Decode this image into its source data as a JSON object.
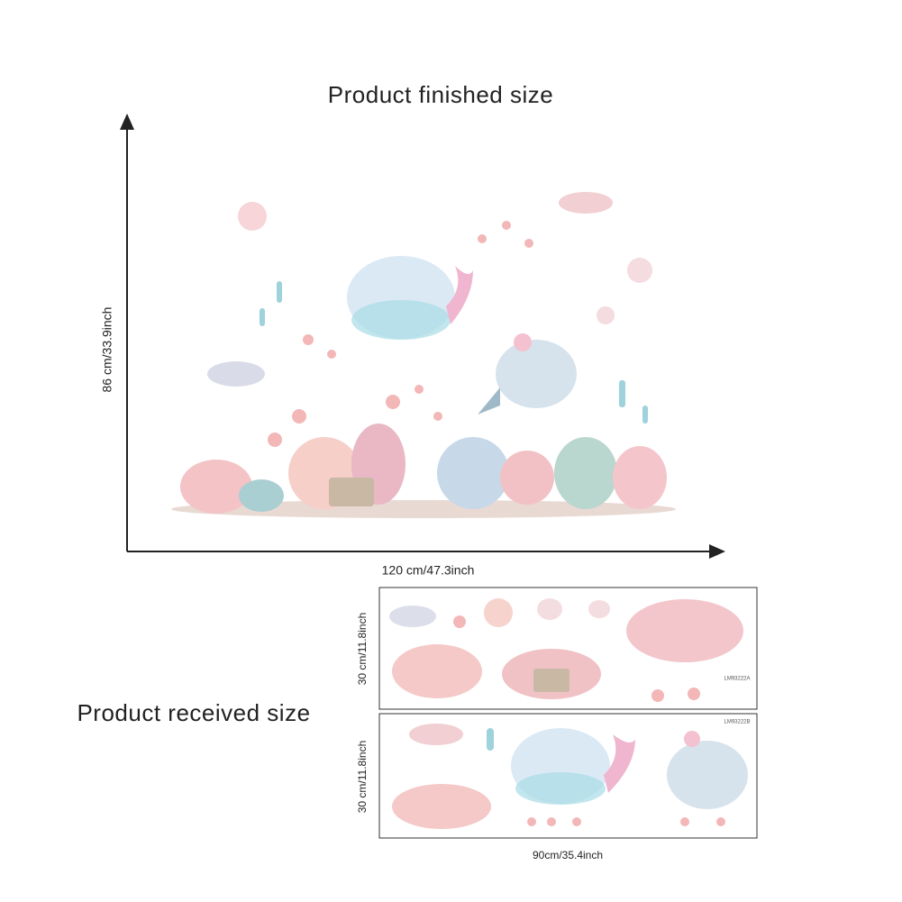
{
  "finished": {
    "title": "Product finished size",
    "height_label": "86 cm/33.9inch",
    "width_label": "120 cm/47.3inch"
  },
  "received": {
    "title": "Product received size",
    "width_label": "90cm/35.4inch",
    "sheets": [
      {
        "height_label": "30 cm/11.8inch",
        "code": "LM93222A"
      },
      {
        "height_label": "30 cm/11.8inch",
        "code": "LM93222B"
      }
    ]
  }
}
